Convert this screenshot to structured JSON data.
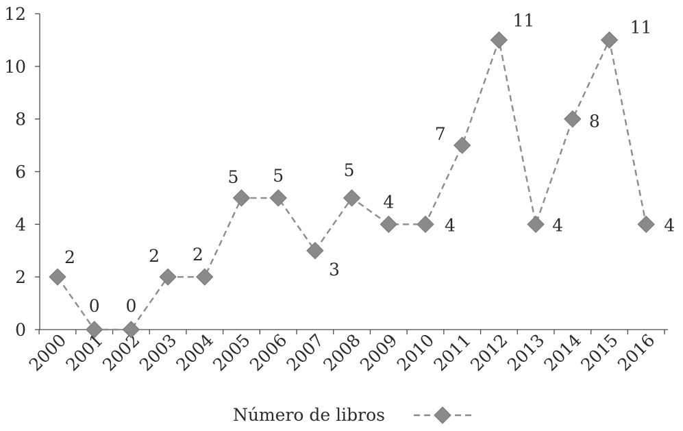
{
  "chart_data": {
    "type": "line",
    "title": "",
    "xlabel": "",
    "ylabel": "",
    "categories": [
      "2000",
      "2001",
      "2002",
      "2003",
      "2004",
      "2005",
      "2006",
      "2007",
      "2008",
      "2009",
      "2010",
      "2011",
      "2012",
      "2013",
      "2014",
      "2015",
      "2016"
    ],
    "series": [
      {
        "name": "Número de libros",
        "values": [
          2,
          0,
          0,
          2,
          2,
          5,
          5,
          3,
          5,
          4,
          4,
          7,
          11,
          4,
          8,
          11,
          4
        ],
        "color": "#8a8a8a",
        "line_style": "dashed",
        "marker": "diamond"
      }
    ],
    "ylim": [
      0,
      12
    ],
    "yticks": [
      "0",
      "2",
      "4",
      "6",
      "8",
      "10",
      "12"
    ],
    "grid": false,
    "legend_position": "bottom-center",
    "x_tick_rotation": "-45deg",
    "data_labels": [
      "2",
      "0",
      "0",
      "2",
      "2",
      "5",
      "5",
      "3",
      "5",
      "4",
      "4",
      "7",
      "11",
      "4",
      "8",
      "11",
      "4"
    ]
  }
}
